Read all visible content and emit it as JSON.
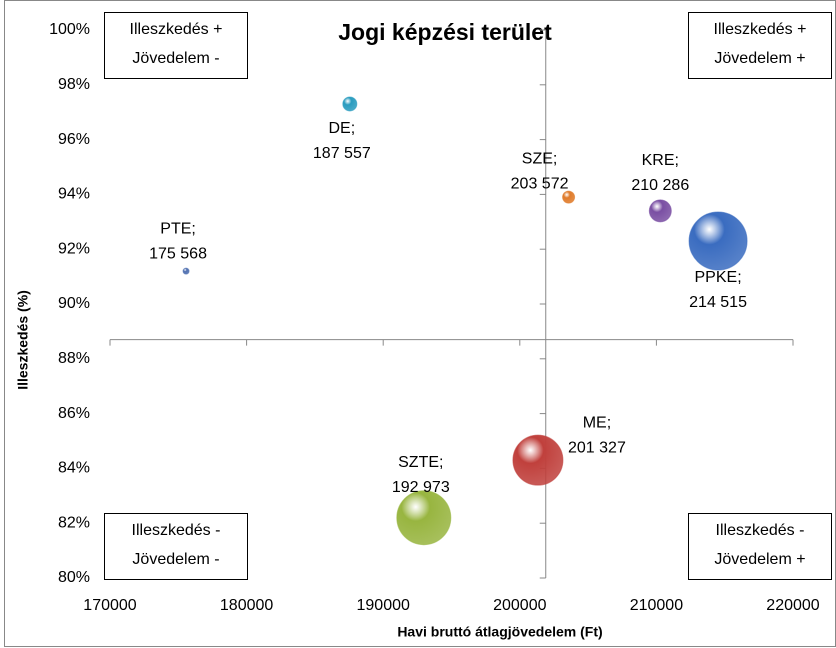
{
  "chart_data": {
    "type": "bubble",
    "title": "Jogi képzési terület",
    "x_label": "Havi bruttó átlagjövedelem (Ft)",
    "y_label": "Illeszkedés (%)",
    "xlim": [
      170000,
      220000
    ],
    "xticks": [
      170000,
      180000,
      190000,
      200000,
      210000,
      220000
    ],
    "ylim": [
      80,
      100
    ],
    "yticks": [
      {
        "value": 80,
        "label": "80%"
      },
      {
        "value": 82,
        "label": "82%"
      },
      {
        "value": 84,
        "label": "84%"
      },
      {
        "value": 86,
        "label": "86%"
      },
      {
        "value": 88,
        "label": "88%"
      },
      {
        "value": 90,
        "label": "90%"
      },
      {
        "value": 92,
        "label": "92%"
      },
      {
        "value": 94,
        "label": "94%"
      },
      {
        "value": 96,
        "label": "96%"
      },
      {
        "value": 98,
        "label": "98%"
      },
      {
        "value": 100,
        "label": "100%"
      }
    ],
    "x_axis_crosses_at": 88.7,
    "y_axis_crosses_at": 201900,
    "points": [
      {
        "name": "PTE",
        "x": 175568,
        "y": 91.2,
        "size": 9,
        "color": "#4f6fb0",
        "label": [
          "PTE;",
          "175 568"
        ]
      },
      {
        "name": "DE",
        "x": 187557,
        "y": 97.3,
        "size": 49,
        "color": "#2a9cbf",
        "label": [
          "DE;",
          "187 557"
        ]
      },
      {
        "name": "SZE",
        "x": 203572,
        "y": 93.9,
        "size": 36,
        "color": "#e07b2a",
        "label": [
          "SZE;",
          "203 572"
        ]
      },
      {
        "name": "KRE",
        "x": 210286,
        "y": 93.4,
        "size": 121,
        "color": "#7a4fa3",
        "label": [
          "KRE;",
          "210 286"
        ]
      },
      {
        "name": "PPKE",
        "x": 214515,
        "y": 92.3,
        "size": 841,
        "color": "#3a6cc0",
        "label": [
          "PPKE;",
          "214 515"
        ]
      },
      {
        "name": "ME",
        "x": 201327,
        "y": 84.3,
        "size": 625,
        "color": "#c0403c",
        "label": [
          "ME;",
          "201 327"
        ]
      },
      {
        "name": "SZTE",
        "x": 192973,
        "y": 82.2,
        "size": 729,
        "color": "#98b540",
        "label": [
          "SZTE;",
          "192 973"
        ]
      }
    ],
    "quadrants": [
      {
        "position": "top-left",
        "lines": [
          "Illeszkedés +",
          "Jövedelem -"
        ]
      },
      {
        "position": "top-right",
        "lines": [
          "Illeszkedés +",
          "Jövedelem +"
        ]
      },
      {
        "position": "bottom-left",
        "lines": [
          "Illeszkedés -",
          "Jövedelem -"
        ]
      },
      {
        "position": "bottom-right",
        "lines": [
          "Illeszkedés -",
          "Jövedelem +"
        ]
      }
    ]
  }
}
